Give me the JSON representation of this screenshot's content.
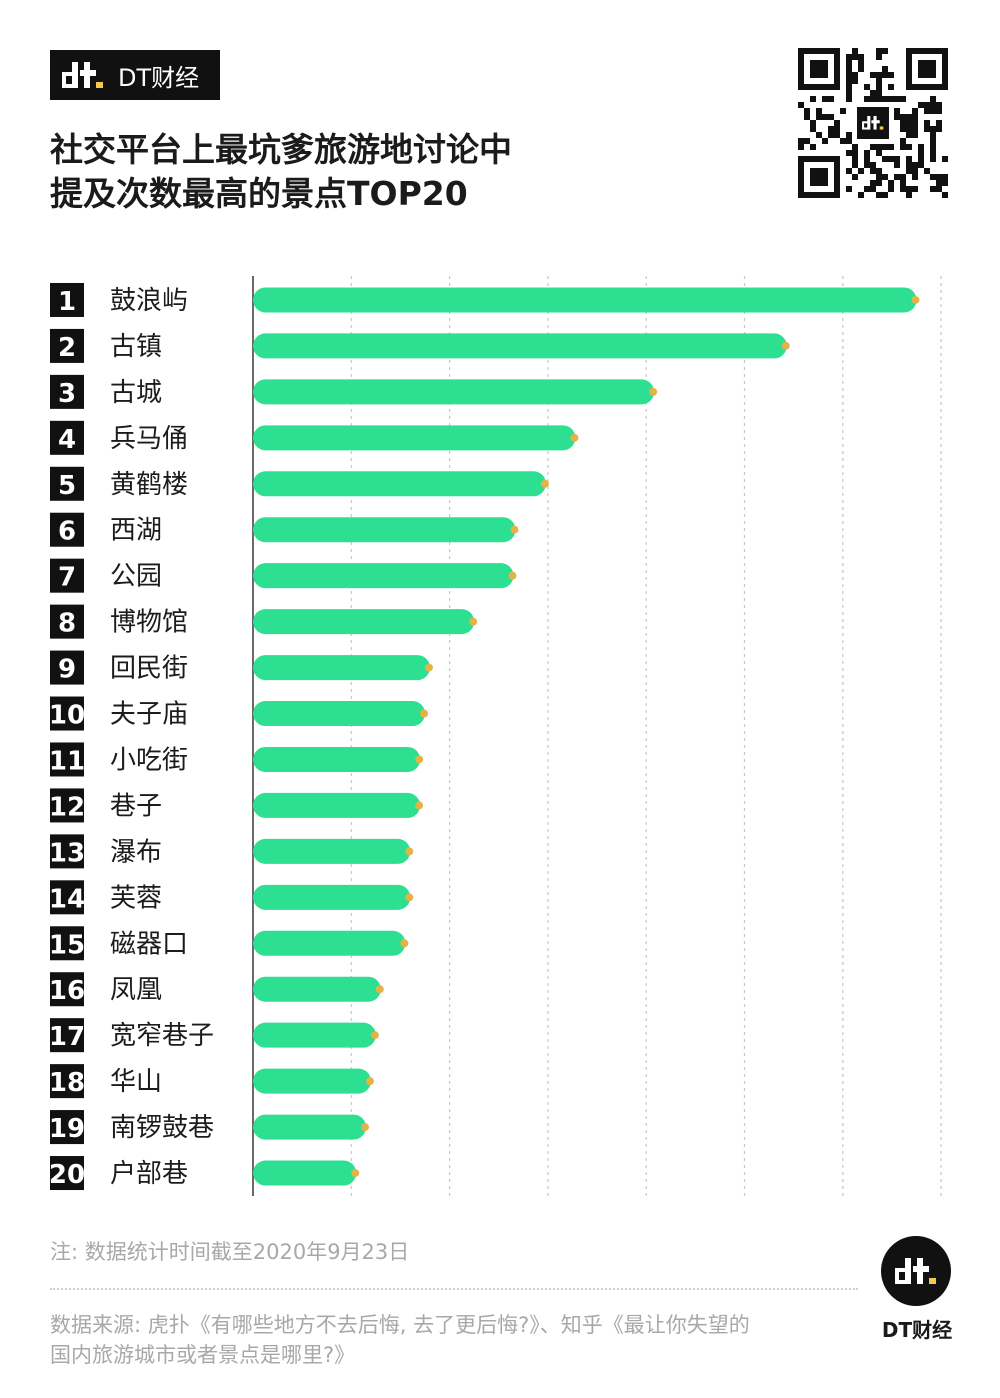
{
  "brand": {
    "name": "DT财经"
  },
  "title": {
    "line1": "社交平台上最坑爹旅游地讨论中",
    "line2": "提及次数最高的景点TOP20"
  },
  "chart_data": {
    "type": "bar",
    "orientation": "horizontal",
    "title": "社交平台上最坑爹旅游地讨论中提及次数最高的景点TOP20",
    "xlabel": "",
    "ylabel": "",
    "xlim": [
      0,
      7
    ],
    "grid": "vertical dashed",
    "legend": "none",
    "ranks": [
      "1",
      "2",
      "3",
      "4",
      "5",
      "6",
      "7",
      "8",
      "9",
      "10",
      "11",
      "12",
      "13",
      "14",
      "15",
      "16",
      "17",
      "18",
      "19",
      "20"
    ],
    "categories": [
      "鼓浪屿",
      "古镇",
      "古城",
      "兵马俑",
      "黄鹤楼",
      "西湖",
      "公园",
      "博物馆",
      "回民街",
      "夫子庙",
      "小吃街",
      "巷子",
      "瀑布",
      "芙蓉",
      "磁器口",
      "凤凰",
      "宽窄巷子",
      "华山",
      "南锣鼓巷",
      "户部巷"
    ],
    "values": [
      6.75,
      5.43,
      4.08,
      3.28,
      2.98,
      2.67,
      2.65,
      2.25,
      1.8,
      1.75,
      1.7,
      1.7,
      1.6,
      1.6,
      1.55,
      1.3,
      1.25,
      1.2,
      1.15,
      1.05
    ],
    "colors": {
      "bar": "#2ddf90",
      "endpoint": "#e3b34a",
      "rank_box": "#111111",
      "grid": "#c6c6c6"
    }
  },
  "footer": {
    "note": "注: 数据统计时间截至2020年9月23日",
    "source_line1": "数据来源: 虎扑《有哪些地方不去后悔, 去了更后悔?》、知乎《最让你失望的",
    "source_line2": "国内旅游城市或者景点是哪里?》",
    "logo_label": "DT财经"
  },
  "icons": {
    "qr": "qr-code-icon",
    "logo": "dt-logo-icon"
  }
}
